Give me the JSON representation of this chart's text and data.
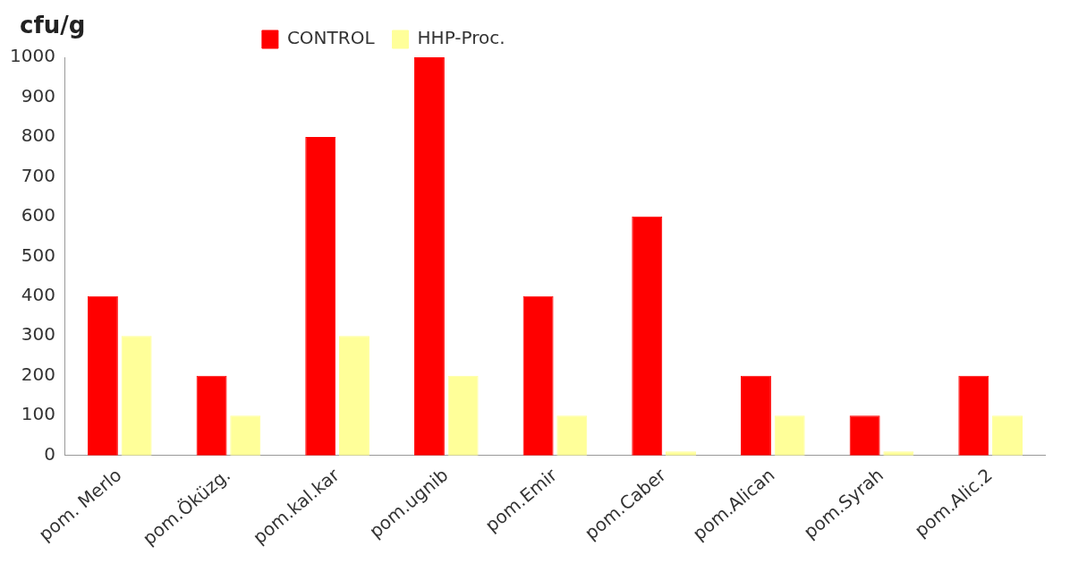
{
  "chart_data": {
    "type": "bar",
    "ylabel": "cfu/g",
    "categories": [
      "pom. Merlo",
      "pom.Öküzg.",
      "pom.kal.kar",
      "pom.ugnib",
      "pom.Emir",
      "pom.Caber",
      "pom.Alican",
      "pom.Syrah",
      "pom.Alic.2"
    ],
    "series": [
      {
        "name": "CONTROL",
        "color": "#ff0000",
        "values": [
          400,
          200,
          800,
          1000,
          400,
          600,
          200,
          100,
          200
        ]
      },
      {
        "name": "HHP-Proc.",
        "color": "#ffff99",
        "values": [
          300,
          100,
          300,
          200,
          100,
          10,
          100,
          10,
          100
        ]
      }
    ],
    "ylim": [
      0,
      1000
    ],
    "yticks": [
      0,
      100,
      200,
      300,
      400,
      500,
      600,
      700,
      800,
      900,
      1000
    ],
    "grid": false,
    "legend": "top left"
  }
}
